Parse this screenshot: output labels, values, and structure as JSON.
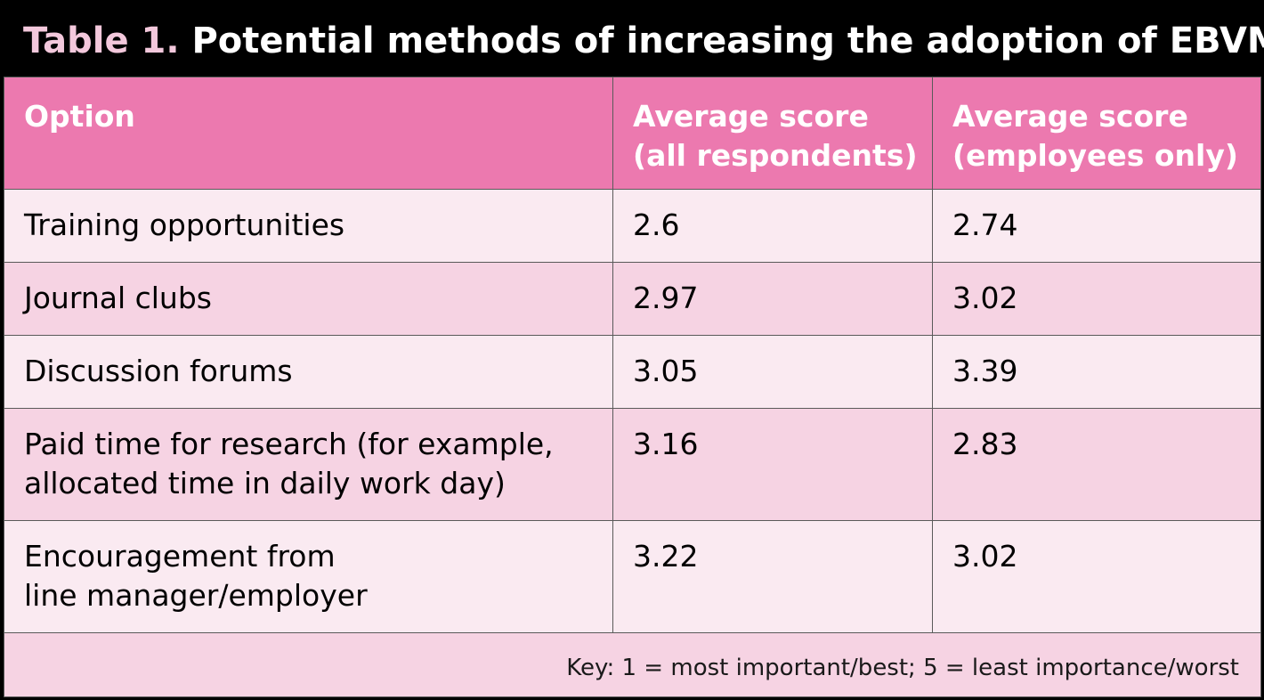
{
  "title": {
    "number": "Table 1.",
    "text": "Potential methods of increasing the adoption of EBVM"
  },
  "table": {
    "headers": {
      "option": "Option",
      "all_line1": "Average score",
      "all_line2": "(all respondents)",
      "emp_line1": "Average score",
      "emp_line2": "(employees only)"
    },
    "rows": [
      {
        "option": [
          "Training opportunities"
        ],
        "all": "2.6",
        "employees": "2.74"
      },
      {
        "option": [
          "Journal clubs"
        ],
        "all": "2.97",
        "employees": "3.02"
      },
      {
        "option": [
          "Discussion forums"
        ],
        "all": "3.05",
        "employees": "3.39"
      },
      {
        "option": [
          "Paid time for research (for example,",
          "allocated time in daily work day)"
        ],
        "all": "3.16",
        "employees": "2.83"
      },
      {
        "option": [
          "Encouragement from",
          "line manager/employer"
        ],
        "all": "3.22",
        "employees": "3.02"
      }
    ],
    "key": "Key: 1 = most important/best; 5 = least importance/worst"
  },
  "colors": {
    "header_bg": "#ec79af",
    "row_light": "#faeaf1",
    "row_dark": "#f6d3e3",
    "title_number": "#f3c8dc"
  }
}
